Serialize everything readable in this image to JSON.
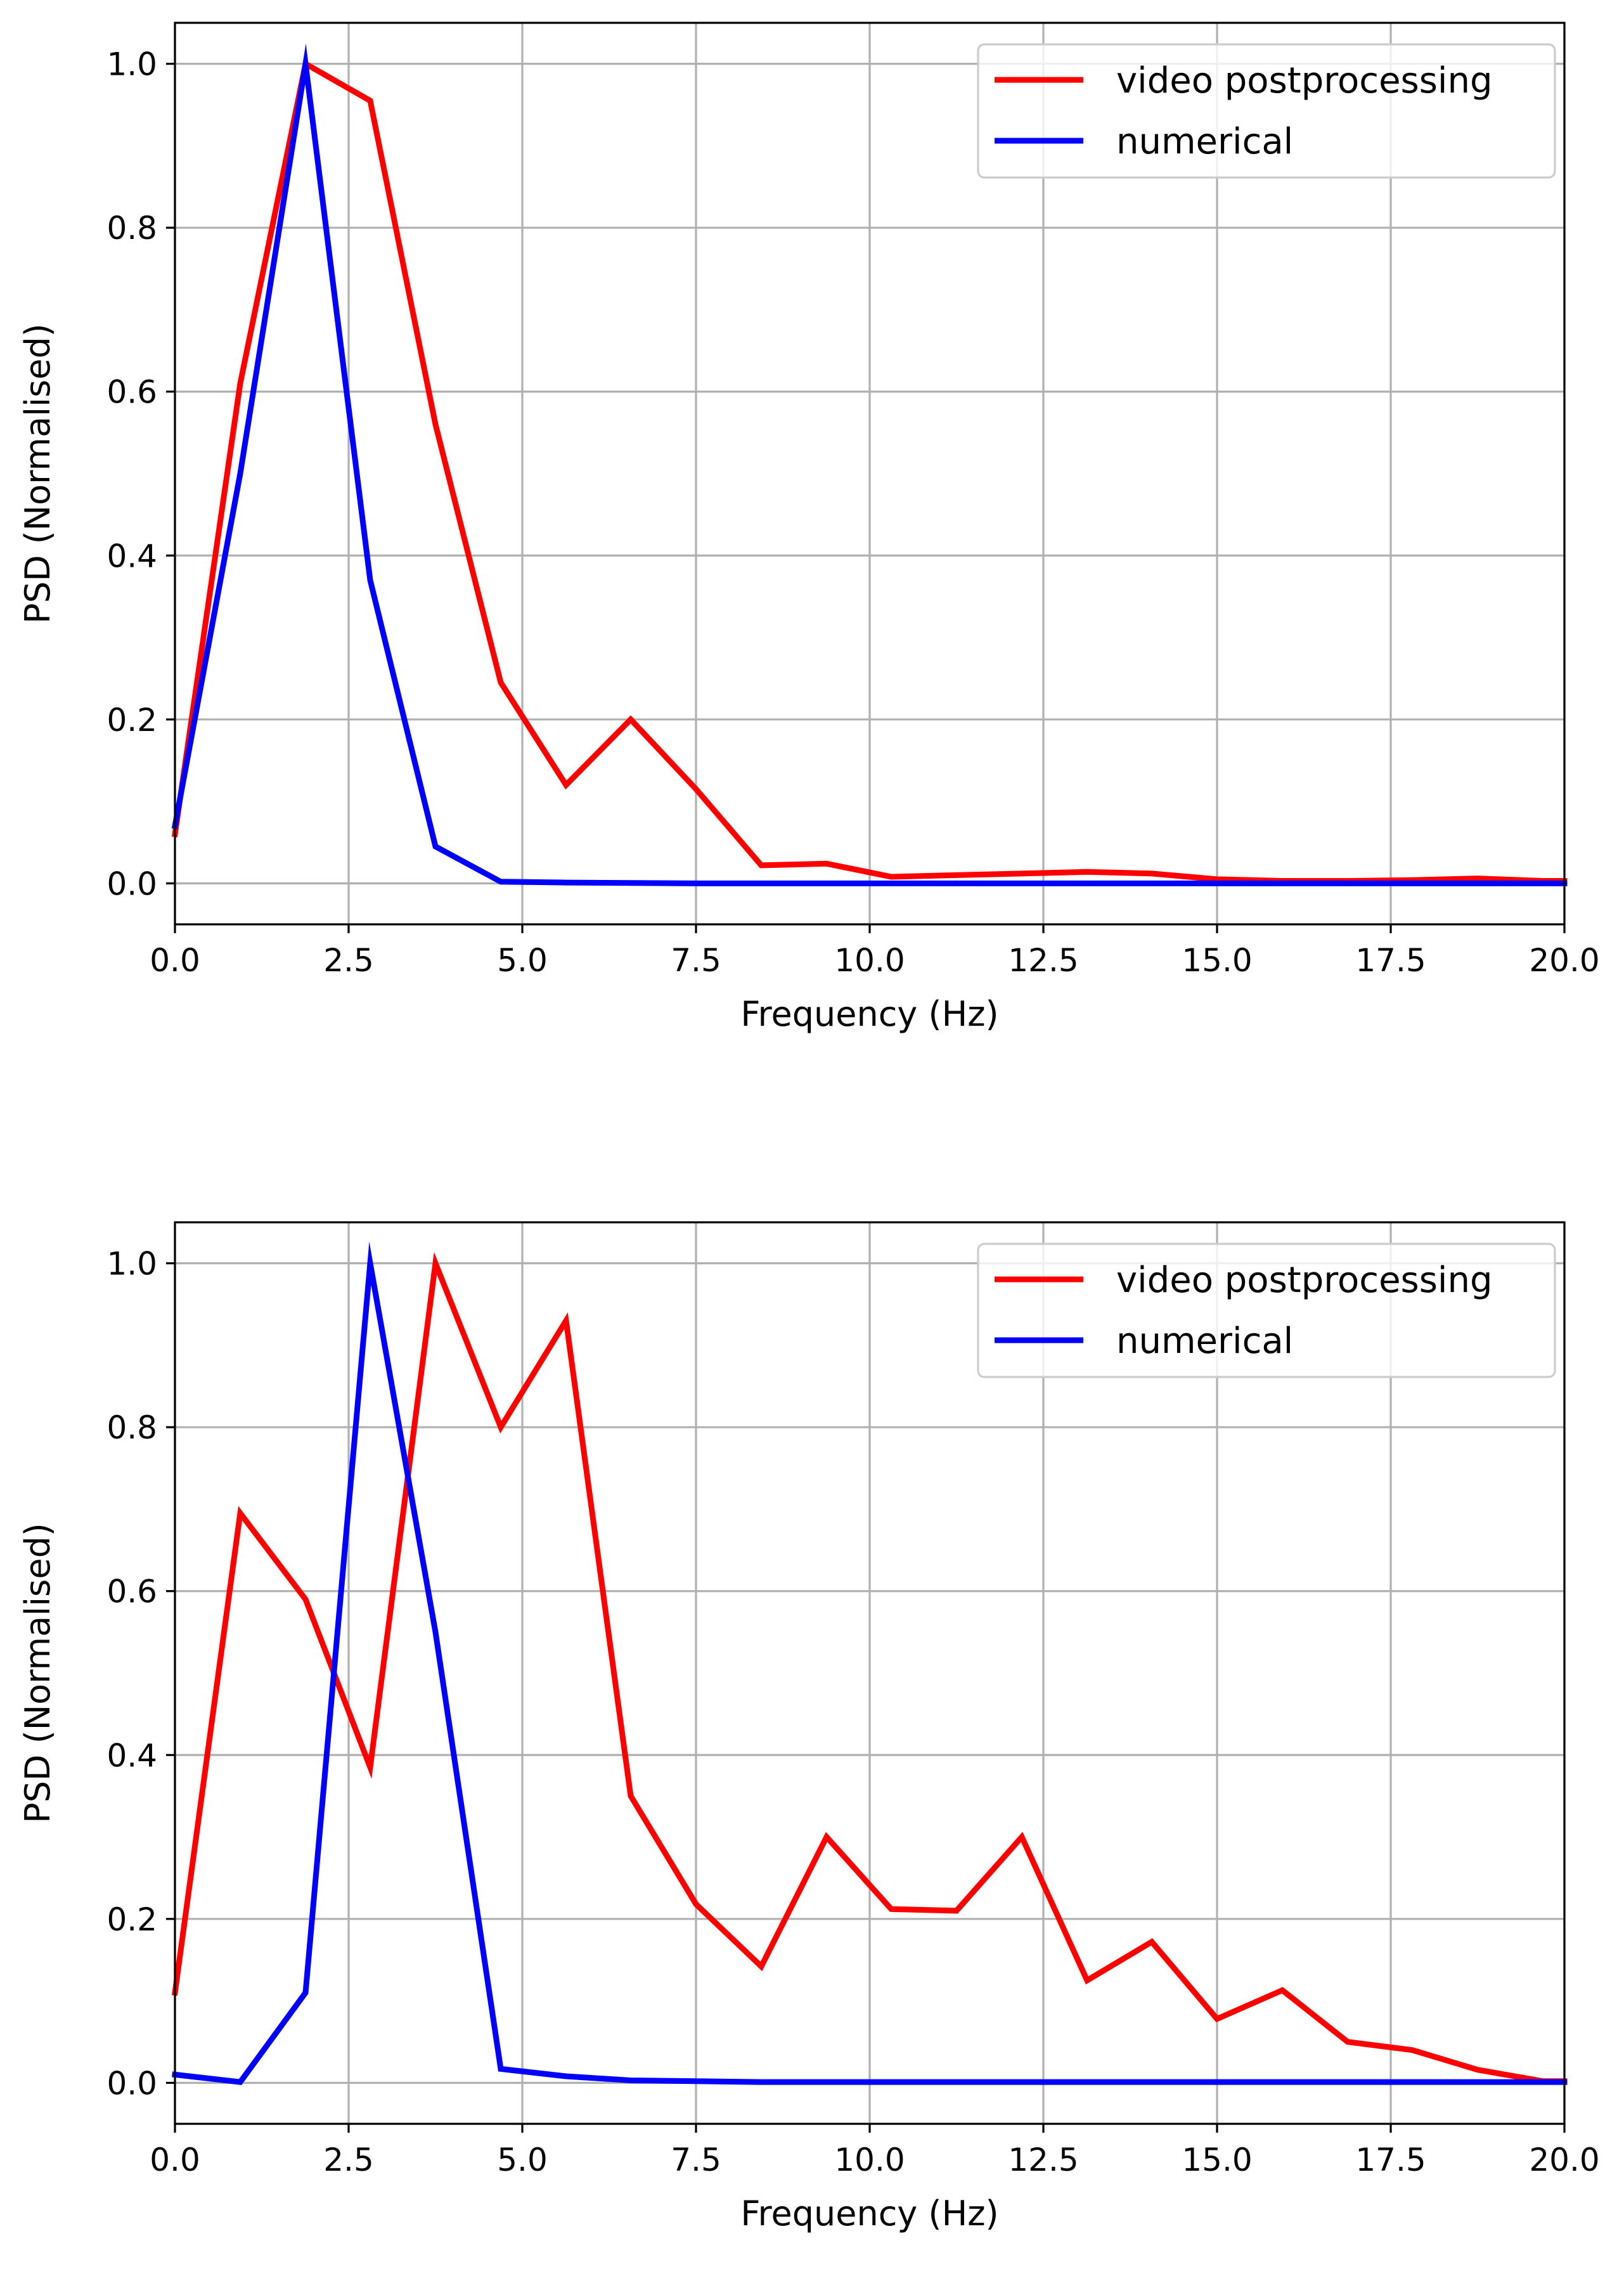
{
  "chart_data": [
    {
      "type": "line",
      "title": "",
      "xlabel": "Frequency (Hz)",
      "ylabel": "PSD (Normalised)",
      "xlim": [
        0,
        20
      ],
      "ylim": [
        -0.05,
        1.05
      ],
      "grid": true,
      "legend_position": "top-right",
      "xticks": [
        0,
        2.5,
        5,
        7.5,
        10,
        12.5,
        15,
        17.5,
        20
      ],
      "xtick_labels": [
        "0.0",
        "2.5",
        "5.0",
        "7.5",
        "10.0",
        "12.5",
        "15.0",
        "17.5",
        "20.0"
      ],
      "yticks": [
        0,
        0.2,
        0.4,
        0.6,
        0.8,
        1.0
      ],
      "ytick_labels": [
        "0.0",
        "0.2",
        "0.4",
        "0.6",
        "0.8",
        "1.0"
      ],
      "series": [
        {
          "name": "video postprocessing",
          "color": "#ff0000",
          "x": [
            0,
            0.94,
            1.88,
            2.81,
            3.75,
            4.69,
            5.63,
            6.56,
            7.5,
            8.44,
            9.38,
            10.31,
            11.25,
            12.19,
            13.13,
            14.06,
            15.0,
            15.94,
            16.88,
            17.81,
            18.75,
            19.69,
            20.0
          ],
          "values": [
            0.06,
            0.61,
            1.0,
            0.955,
            0.56,
            0.245,
            0.12,
            0.2,
            0.115,
            0.022,
            0.024,
            0.008,
            0.01,
            0.012,
            0.014,
            0.012,
            0.005,
            0.003,
            0.003,
            0.004,
            0.006,
            0.003,
            0.003
          ]
        },
        {
          "name": "numerical",
          "color": "#0000ff",
          "x": [
            0,
            0.94,
            1.88,
            2.81,
            3.75,
            4.69,
            5.63,
            6.56,
            7.5,
            8.44,
            9.38,
            10.31,
            11.25,
            12.19,
            13.13,
            14.06,
            15.0,
            15.94,
            16.88,
            17.81,
            18.75,
            19.69,
            20.0
          ],
          "values": [
            0.07,
            0.5,
            1.0,
            0.37,
            0.045,
            0.002,
            0.001,
            0.0005,
            0,
            0,
            0,
            0,
            0,
            0,
            0,
            0,
            0,
            0,
            0,
            0,
            0,
            0,
            0
          ]
        }
      ]
    },
    {
      "type": "line",
      "title": "",
      "xlabel": "Frequency (Hz)",
      "ylabel": "PSD (Normalised)",
      "xlim": [
        0,
        20
      ],
      "ylim": [
        -0.05,
        1.05
      ],
      "grid": true,
      "legend_position": "top-right",
      "xticks": [
        0,
        2.5,
        5,
        7.5,
        10,
        12.5,
        15,
        17.5,
        20
      ],
      "xtick_labels": [
        "0.0",
        "2.5",
        "5.0",
        "7.5",
        "10.0",
        "12.5",
        "15.0",
        "17.5",
        "20.0"
      ],
      "yticks": [
        0,
        0.2,
        0.4,
        0.6,
        0.8,
        1.0
      ],
      "ytick_labels": [
        "0.0",
        "0.2",
        "0.4",
        "0.6",
        "0.8",
        "1.0"
      ],
      "series": [
        {
          "name": "video postprocessing",
          "color": "#ff0000",
          "x": [
            0,
            0.94,
            1.88,
            2.81,
            3.75,
            4.69,
            5.63,
            6.56,
            7.5,
            8.44,
            9.38,
            10.31,
            11.25,
            12.19,
            13.13,
            14.06,
            15.0,
            15.94,
            16.88,
            17.81,
            18.75,
            19.69,
            20.0
          ],
          "values": [
            0.11,
            0.695,
            0.59,
            0.385,
            1.0,
            0.8,
            0.93,
            0.35,
            0.218,
            0.142,
            0.3,
            0.212,
            0.21,
            0.3,
            0.125,
            0.172,
            0.078,
            0.113,
            0.05,
            0.04,
            0.016,
            0.002,
            0.002
          ]
        },
        {
          "name": "numerical",
          "color": "#0000ff",
          "x": [
            0,
            0.94,
            1.88,
            2.81,
            3.75,
            4.69,
            5.63,
            6.56,
            7.5,
            8.44,
            9.38,
            10.31,
            11.25,
            12.19,
            13.13,
            14.06,
            15.0,
            15.94,
            16.88,
            17.81,
            18.75,
            19.69,
            20.0
          ],
          "values": [
            0.01,
            0.001,
            0.11,
            1.0,
            0.55,
            0.017,
            0.008,
            0.003,
            0.002,
            0.001,
            0.001,
            0.001,
            0.001,
            0.001,
            0.001,
            0.001,
            0.001,
            0.001,
            0.001,
            0.001,
            0.001,
            0.001,
            0.001
          ]
        }
      ]
    }
  ]
}
